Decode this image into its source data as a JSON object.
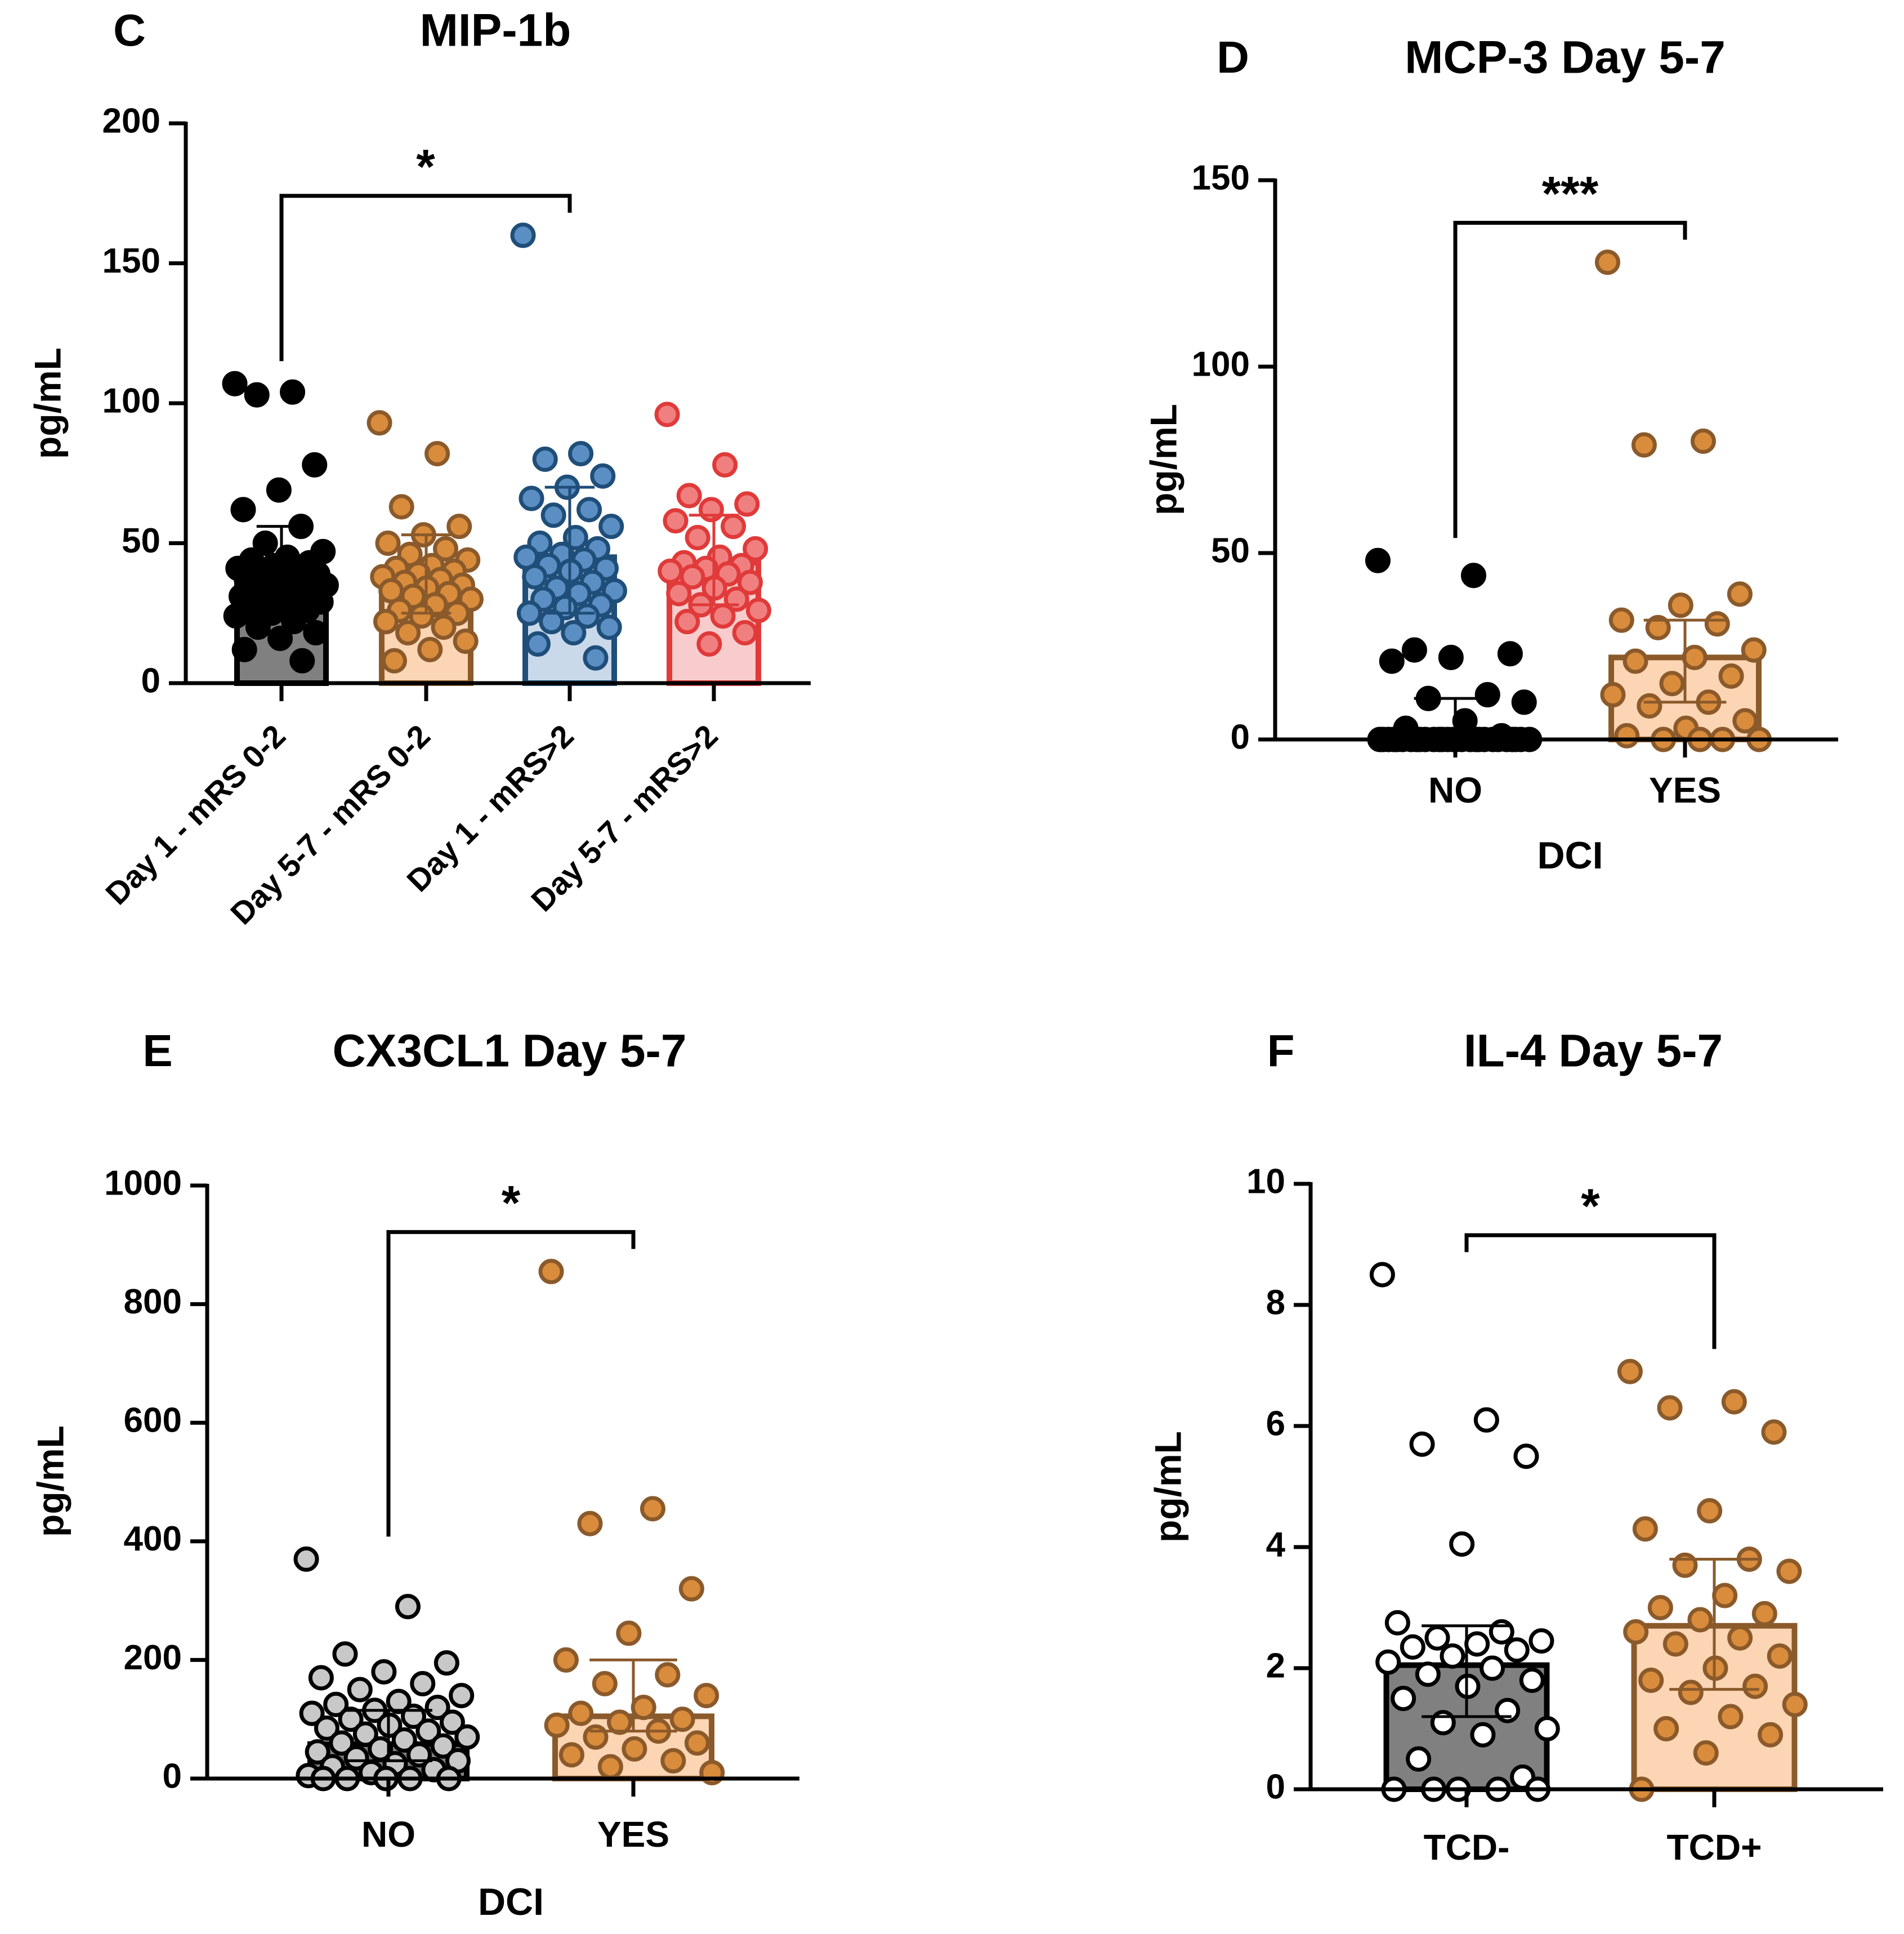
{
  "colors": {
    "axis": "#000000",
    "black_fill": "#000000",
    "gray_bar": "#808080",
    "gray_point": "#c8c8c8",
    "orange_fill": "#fcd5b4",
    "orange_edge": "#8b5a2b",
    "orange_point": "#d98c3c",
    "blue_fill": "#c9d9ea",
    "blue_edge": "#1f4e79",
    "blue_point": "#5b8fc4",
    "red_fill": "#f8cccc",
    "red_edge": "#e03a3a",
    "red_point": "#f08080",
    "white": "#ffffff"
  },
  "chart_data": [
    {
      "panel": "C",
      "type": "bar",
      "title": "MIP-1b",
      "ylabel": "pg/mL",
      "xlabel": "",
      "ylim": [
        0,
        200
      ],
      "yticks": [
        "0",
        "50",
        "100",
        "150",
        "200"
      ],
      "categories": [
        "Day 1 - mRS 0-2",
        "Day 5-7 - mRS 0-2",
        "Day 1 - mRS>2",
        "Day 5-7 - mRS>2"
      ],
      "series": [
        {
          "name": "Day 1 - mRS 0-2",
          "value": 35,
          "err_low": 25,
          "err_high": 56,
          "palette": "black",
          "points": [
            107,
            104,
            103,
            78,
            69,
            62,
            56,
            50,
            47,
            45,
            44,
            43,
            42,
            41,
            40,
            40,
            39,
            38,
            37,
            36,
            35,
            35,
            34,
            33,
            33,
            32,
            31,
            30,
            30,
            29,
            28,
            27,
            26,
            25,
            24,
            22,
            20,
            18,
            16,
            12,
            8
          ]
        },
        {
          "name": "Day 5-7 - mRS 0-2",
          "value": 35,
          "err_low": 25,
          "err_high": 53,
          "palette": "orange",
          "points": [
            93,
            82,
            63,
            56,
            53,
            50,
            48,
            46,
            44,
            42,
            41,
            40,
            39,
            38,
            37,
            36,
            35,
            34,
            33,
            32,
            31,
            30,
            28,
            26,
            25,
            24,
            22,
            20,
            18,
            15,
            12,
            8
          ]
        },
        {
          "name": "Day 1 - mRS>2",
          "value": 45,
          "err_low": 25,
          "err_high": 70,
          "palette": "blue",
          "points": [
            160,
            82,
            80,
            74,
            70,
            66,
            62,
            60,
            56,
            52,
            50,
            48,
            46,
            45,
            44,
            42,
            41,
            40,
            38,
            36,
            34,
            33,
            32,
            30,
            28,
            27,
            25,
            24,
            22,
            20,
            18,
            14,
            9
          ]
        },
        {
          "name": "Day 5-7 - mRS>2",
          "value": 43,
          "err_low": 28,
          "err_high": 60,
          "palette": "red",
          "points": [
            96,
            78,
            67,
            64,
            62,
            58,
            56,
            52,
            48,
            45,
            43,
            42,
            41,
            40,
            39,
            38,
            36,
            34,
            32,
            30,
            28,
            26,
            24,
            22,
            18,
            14
          ]
        }
      ],
      "significance": {
        "from": 0,
        "to": 2,
        "label": "*"
      }
    },
    {
      "panel": "D",
      "type": "bar",
      "title": "MCP-3 Day 5-7",
      "ylabel": "pg/mL",
      "xlabel": "DCI",
      "ylim": [
        0,
        150
      ],
      "yticks": [
        "0",
        "50",
        "100",
        "150"
      ],
      "categories": [
        "NO",
        "YES"
      ],
      "series": [
        {
          "name": "NO",
          "value": 1,
          "err_low": 0,
          "err_high": 11,
          "palette": "black",
          "points": [
            48,
            44,
            24,
            23,
            22,
            21,
            12,
            11,
            10,
            5,
            3,
            1,
            0,
            0,
            0,
            0,
            0,
            0,
            0,
            0,
            0,
            0,
            0,
            0,
            0,
            0,
            0,
            0,
            0,
            0,
            0,
            0,
            0,
            0,
            0,
            0,
            0,
            0,
            0,
            0
          ]
        },
        {
          "name": "YES",
          "value": 22,
          "err_low": 10,
          "err_high": 32,
          "palette": "orange",
          "points": [
            128,
            80,
            79,
            39,
            36,
            32,
            31,
            30,
            24,
            22,
            21,
            17,
            15,
            12,
            10,
            9,
            5,
            3,
            1,
            0,
            0,
            0,
            0
          ]
        }
      ],
      "significance": {
        "from": 0,
        "to": 1,
        "label": "***"
      }
    },
    {
      "panel": "E",
      "type": "bar",
      "title": "CX3CL1 Day 5-7",
      "ylabel": "pg/mL",
      "xlabel": "DCI",
      "ylim": [
        0,
        1000
      ],
      "yticks": [
        "0",
        "200",
        "400",
        "600",
        "800",
        "1000"
      ],
      "categories": [
        "NO",
        "YES"
      ],
      "series": [
        {
          "name": "NO",
          "value": 58,
          "err_low": 30,
          "err_high": 115,
          "palette": "gray",
          "points": [
            370,
            290,
            210,
            195,
            180,
            170,
            160,
            150,
            140,
            130,
            125,
            120,
            115,
            110,
            105,
            100,
            95,
            90,
            85,
            80,
            75,
            70,
            65,
            60,
            55,
            50,
            45,
            40,
            35,
            30,
            25,
            20,
            15,
            10,
            5,
            0,
            0,
            0,
            0,
            0
          ]
        },
        {
          "name": "YES",
          "value": 105,
          "err_low": 80,
          "err_high": 200,
          "palette": "orange",
          "points": [
            855,
            455,
            430,
            320,
            245,
            200,
            175,
            160,
            140,
            120,
            110,
            100,
            95,
            90,
            80,
            70,
            60,
            50,
            40,
            30,
            20,
            10
          ]
        }
      ],
      "significance": {
        "from": 0,
        "to": 1,
        "label": "*"
      }
    },
    {
      "panel": "F",
      "type": "bar",
      "title": "IL-4 Day 5-7",
      "ylabel": "pg/mL",
      "xlabel": "",
      "ylim": [
        0,
        10
      ],
      "yticks": [
        "0",
        "2",
        "4",
        "6",
        "8",
        "10"
      ],
      "categories": [
        "TCD-",
        "TCD+"
      ],
      "series": [
        {
          "name": "TCD-",
          "value": 2.05,
          "err_low": 1.2,
          "err_high": 2.7,
          "palette": "white",
          "points": [
            8.5,
            6.1,
            5.7,
            5.5,
            4.05,
            2.75,
            2.6,
            2.5,
            2.45,
            2.4,
            2.35,
            2.3,
            2.2,
            2.1,
            2.0,
            1.9,
            1.8,
            1.7,
            1.5,
            1.3,
            1.1,
            1.0,
            0.9,
            0.5,
            0.2,
            0,
            0,
            0,
            0,
            0
          ]
        },
        {
          "name": "TCD+",
          "value": 2.7,
          "err_low": 1.65,
          "err_high": 3.8,
          "palette": "orange",
          "points": [
            6.9,
            6.4,
            6.3,
            5.9,
            4.6,
            4.3,
            3.8,
            3.7,
            3.6,
            3.2,
            3.0,
            2.9,
            2.8,
            2.6,
            2.5,
            2.4,
            2.2,
            2.0,
            1.8,
            1.7,
            1.6,
            1.4,
            1.2,
            1.0,
            0.9,
            0.6,
            0
          ]
        }
      ],
      "significance": {
        "from": 0,
        "to": 1,
        "label": "*"
      }
    }
  ]
}
